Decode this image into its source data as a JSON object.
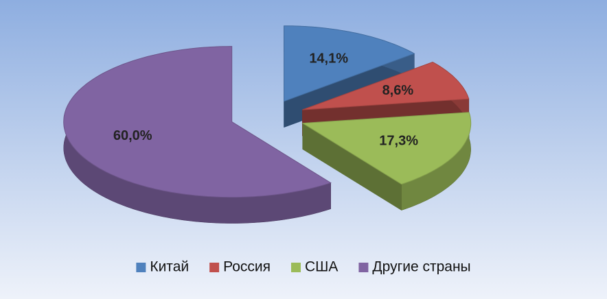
{
  "chart_data": {
    "type": "pie",
    "categories": [
      "Китай",
      "Россия",
      "США",
      "Другие страны"
    ],
    "values": [
      14.1,
      8.6,
      17.3,
      60.0
    ],
    "value_labels": [
      "14,1%",
      "8,6%",
      "17,3%",
      "60,0%"
    ],
    "colors": [
      "#4f81bd",
      "#c0504d",
      "#9bbb59",
      "#8064a2"
    ],
    "legend": "bottom"
  }
}
